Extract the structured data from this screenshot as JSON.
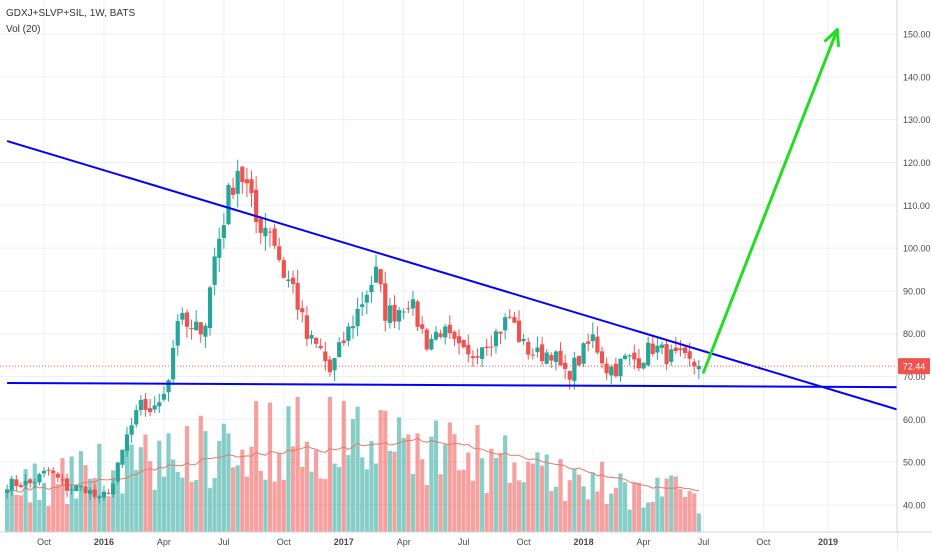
{
  "header": {
    "symbol": "GDXJ+SLVP+SIL, 1W, BATS",
    "volume_label": "Vol (20)"
  },
  "price_badge": "72.44",
  "colors": {
    "up": "#26a69a",
    "down": "#ef5350",
    "trendline": "#0000ff",
    "arrow": "#22dd22",
    "ma": "#e37a6c",
    "grid": "#eef0f3"
  },
  "chart_data": {
    "type": "candlestick",
    "x_ticks": [
      "Oct",
      "2016",
      "Apr",
      "Jul",
      "Oct",
      "2017",
      "Apr",
      "Jul",
      "Oct",
      "2018",
      "Apr",
      "Jul",
      "Oct",
      "2019"
    ],
    "y_ticks": [
      "150.00",
      "140.00",
      "130.00",
      "120.00",
      "110.00",
      "100.00",
      "90.00",
      "80.00",
      "70.00",
      "60.00",
      "50.00",
      "40.00"
    ],
    "ylim": [
      36,
      153
    ],
    "last_price": 72.44,
    "close_series": [
      {
        "x": "2015-09-14",
        "close": 45
      },
      {
        "x": "2015-10-12",
        "close": 48
      },
      {
        "x": "2015-11-09",
        "close": 44
      },
      {
        "x": "2015-12-07",
        "close": 44
      },
      {
        "x": "2015-12-28",
        "close": 41
      },
      {
        "x": "2016-01-18",
        "close": 45
      },
      {
        "x": "2016-02-08",
        "close": 56
      },
      {
        "x": "2016-02-29",
        "close": 63
      },
      {
        "x": "2016-03-21",
        "close": 62
      },
      {
        "x": "2016-04-11",
        "close": 70
      },
      {
        "x": "2016-04-25",
        "close": 84
      },
      {
        "x": "2016-05-16",
        "close": 80
      },
      {
        "x": "2016-06-06",
        "close": 83
      },
      {
        "x": "2016-06-20",
        "close": 98
      },
      {
        "x": "2016-07-11",
        "close": 112
      },
      {
        "x": "2016-07-25",
        "close": 119
      },
      {
        "x": "2016-08-08",
        "close": 114
      },
      {
        "x": "2016-08-22",
        "close": 106
      },
      {
        "x": "2016-09-12",
        "close": 105
      },
      {
        "x": "2016-10-03",
        "close": 94
      },
      {
        "x": "2016-10-17",
        "close": 91
      },
      {
        "x": "2016-11-07",
        "close": 79
      },
      {
        "x": "2016-11-28",
        "close": 76
      },
      {
        "x": "2016-12-12",
        "close": 71
      },
      {
        "x": "2016-12-26",
        "close": 76
      },
      {
        "x": "2017-01-16",
        "close": 83
      },
      {
        "x": "2017-02-06",
        "close": 90
      },
      {
        "x": "2017-02-20",
        "close": 94
      },
      {
        "x": "2017-03-06",
        "close": 85
      },
      {
        "x": "2017-03-20",
        "close": 85
      },
      {
        "x": "2017-04-10",
        "close": 88
      },
      {
        "x": "2017-04-24",
        "close": 83
      },
      {
        "x": "2017-05-08",
        "close": 78
      },
      {
        "x": "2017-05-29",
        "close": 81
      },
      {
        "x": "2017-06-19",
        "close": 77
      },
      {
        "x": "2017-07-10",
        "close": 74
      },
      {
        "x": "2017-07-31",
        "close": 78
      },
      {
        "x": "2017-08-21",
        "close": 80
      },
      {
        "x": "2017-09-11",
        "close": 84
      },
      {
        "x": "2017-10-02",
        "close": 77
      },
      {
        "x": "2017-10-23",
        "close": 75
      },
      {
        "x": "2017-11-13",
        "close": 76
      },
      {
        "x": "2017-12-04",
        "close": 70
      },
      {
        "x": "2017-12-25",
        "close": 74
      },
      {
        "x": "2018-01-15",
        "close": 79
      },
      {
        "x": "2018-02-05",
        "close": 72
      },
      {
        "x": "2018-02-19",
        "close": 72
      },
      {
        "x": "2018-03-05",
        "close": 74
      },
      {
        "x": "2018-03-26",
        "close": 74
      },
      {
        "x": "2018-04-16",
        "close": 77
      },
      {
        "x": "2018-05-07",
        "close": 75
      },
      {
        "x": "2018-05-28",
        "close": 74
      },
      {
        "x": "2018-06-11",
        "close": 73
      },
      {
        "x": "2018-06-25",
        "close": 72.44
      }
    ],
    "trendlines": [
      {
        "from": {
          "x": "2015-08-10",
          "y": 125
        },
        "to": {
          "x": "2019-05-20",
          "y": 61
        }
      },
      {
        "from": {
          "x": "2015-08-10",
          "y": 68.5
        },
        "to": {
          "x": "2019-05-20",
          "y": 67.5
        }
      }
    ],
    "arrow": {
      "from": {
        "x": "2018-07-02",
        "y": 71
      },
      "to": {
        "x": "2019-01-21",
        "y": 151
      }
    },
    "volume_axis_max": 1
  }
}
